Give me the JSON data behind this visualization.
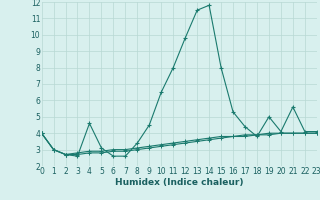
{
  "xlabel": "Humidex (Indice chaleur)",
  "x_values": [
    0,
    1,
    2,
    3,
    4,
    5,
    6,
    7,
    8,
    9,
    10,
    11,
    12,
    13,
    14,
    15,
    16,
    17,
    18,
    19,
    20,
    21,
    22,
    23
  ],
  "line1": [
    4.0,
    3.0,
    2.7,
    2.6,
    4.6,
    3.1,
    2.6,
    2.6,
    3.4,
    4.5,
    6.5,
    8.0,
    9.8,
    11.5,
    11.8,
    8.0,
    5.3,
    4.4,
    3.8,
    5.0,
    4.1,
    5.6,
    4.1,
    4.1
  ],
  "line2": [
    4.0,
    3.0,
    2.7,
    2.7,
    2.8,
    2.8,
    2.9,
    2.9,
    3.0,
    3.1,
    3.2,
    3.3,
    3.4,
    3.5,
    3.6,
    3.7,
    3.8,
    3.8,
    3.9,
    3.9,
    4.0,
    4.0,
    4.0,
    4.0
  ],
  "line3": [
    4.0,
    3.0,
    2.7,
    2.8,
    2.9,
    2.9,
    3.0,
    3.0,
    3.1,
    3.2,
    3.3,
    3.4,
    3.5,
    3.6,
    3.7,
    3.8,
    3.8,
    3.9,
    3.9,
    4.0,
    4.0,
    4.0,
    4.0,
    4.0
  ],
  "line_color": "#1a7a6e",
  "bg_color": "#d8f0ee",
  "grid_color": "#b8d8d4",
  "ylim": [
    2,
    12
  ],
  "xlim": [
    0,
    23
  ],
  "yticks": [
    2,
    3,
    4,
    5,
    6,
    7,
    8,
    9,
    10,
    11,
    12
  ],
  "xticks": [
    0,
    1,
    2,
    3,
    4,
    5,
    6,
    7,
    8,
    9,
    10,
    11,
    12,
    13,
    14,
    15,
    16,
    17,
    18,
    19,
    20,
    21,
    22,
    23
  ],
  "xlabel_fontsize": 6.5,
  "tick_fontsize": 5.5
}
